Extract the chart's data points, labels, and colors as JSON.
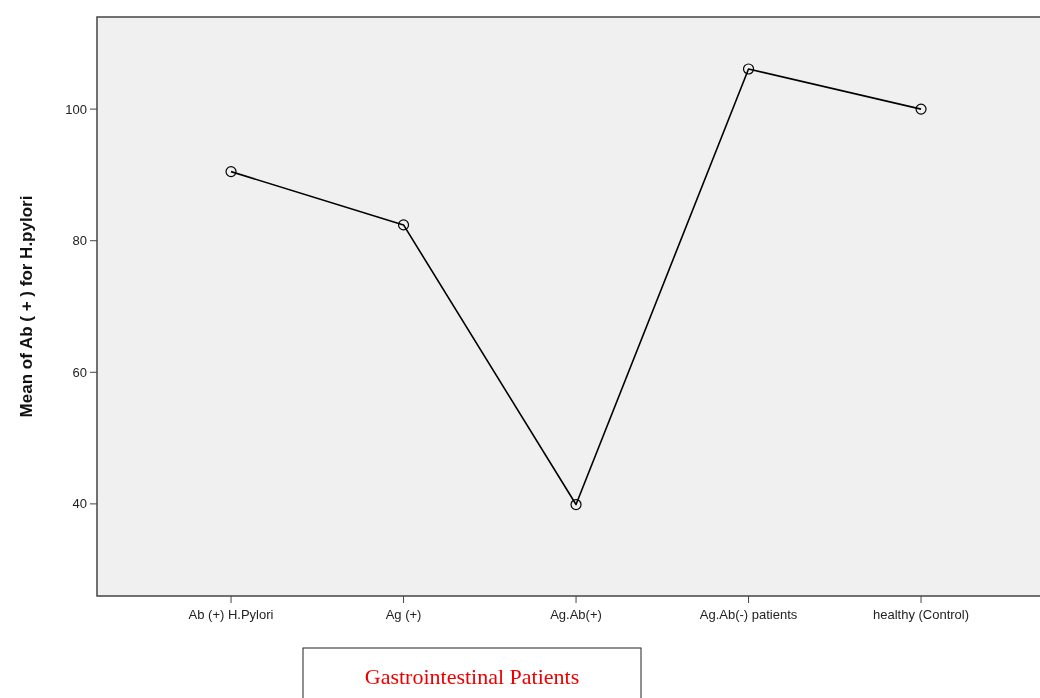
{
  "chart_data": {
    "type": "line",
    "ylabel": "Mean of Ab ( + ) for H.pylori",
    "xlabel": "Gastrointestinal Patients",
    "categories": [
      "Ab (+) H.Pylori",
      "Ag (+)",
      "Ag.Ab(+)",
      "Ag.Ab(-) patients",
      "healthy (Control)"
    ],
    "series": [
      {
        "color": "#000000",
        "values": [
          90.5,
          82.4,
          39.9,
          106.1,
          100
        ]
      }
    ],
    "ylim": [
      26,
      114
    ],
    "yticks": [
      40,
      60,
      80,
      100
    ],
    "marker": "circle",
    "line_style": "solid",
    "grid": false
  }
}
